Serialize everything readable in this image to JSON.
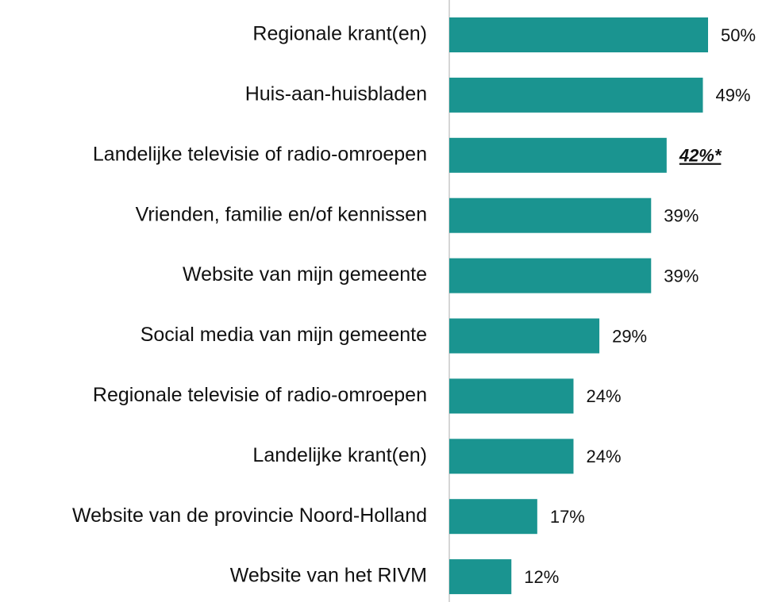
{
  "chart_data": {
    "type": "bar",
    "orientation": "horizontal",
    "categories": [
      "Regionale krant(en)",
      "Huis-aan-huisbladen",
      "Landelijke televisie of radio-omroepen",
      "Vrienden, familie en/of kennissen",
      "Website van mijn gemeente",
      "Social media van mijn gemeente",
      "Regionale televisie of radio-omroepen",
      "Landelijke krant(en)",
      "Website van de provincie Noord-Holland",
      "Website van het RIVM"
    ],
    "values": [
      50,
      49,
      42,
      39,
      39,
      29,
      24,
      24,
      17,
      12
    ],
    "value_labels": [
      "50%",
      "49%",
      "42%*",
      "39%",
      "39%",
      "29%",
      "24%",
      "24%",
      "17%",
      "12%"
    ],
    "highlight_index": 2,
    "color": "#1a9490",
    "xlim": [
      0,
      50
    ]
  }
}
